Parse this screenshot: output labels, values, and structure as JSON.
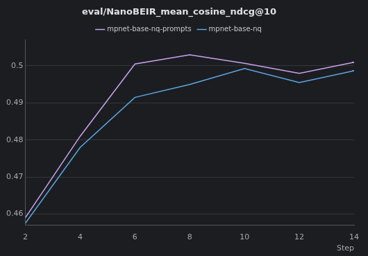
{
  "chart_data": {
    "type": "line",
    "title": "eval/NanoBEIR_mean_cosine_ndcg@10",
    "x_label": "Step",
    "x": [
      2,
      4,
      6,
      8,
      10,
      12,
      14
    ],
    "series": [
      {
        "name": "mpnet-base-nq-prompts",
        "color": "#c9a3f0",
        "values": [
          0.459,
          0.481,
          0.5005,
          0.503,
          0.5007,
          0.498,
          0.501
        ]
      },
      {
        "name": "mpnet-base-nq",
        "color": "#5aa9e6",
        "values": [
          0.4575,
          0.478,
          0.4915,
          0.495,
          0.4993,
          0.4955,
          0.4987
        ]
      }
    ],
    "xlim": [
      2,
      14
    ],
    "xticks": [
      2,
      4,
      6,
      8,
      10,
      12,
      14
    ],
    "ylim": [
      0.457,
      0.507
    ],
    "yticks": [
      0.46,
      0.47,
      0.48,
      0.49,
      0.5
    ],
    "grid": true,
    "legend": "top"
  }
}
